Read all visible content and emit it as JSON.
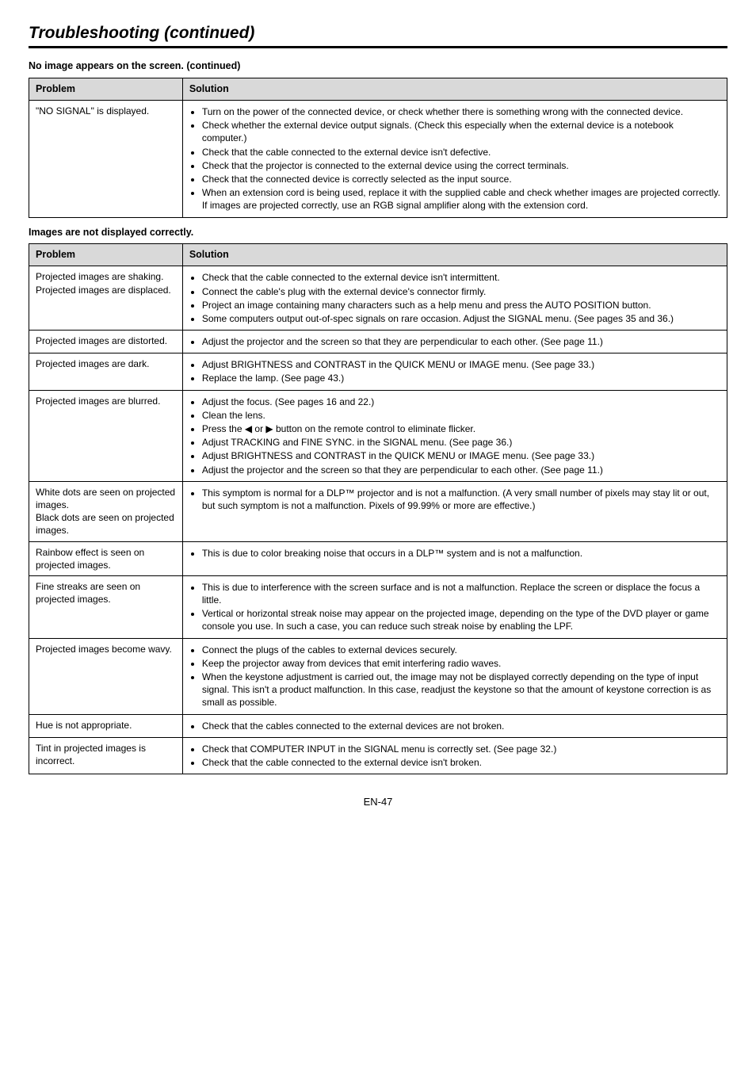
{
  "page": {
    "title": "Troubleshooting (continued)",
    "footer": "EN-47"
  },
  "section1": {
    "heading": "No image appears on the screen. (continued)",
    "headers": {
      "col1": "Problem",
      "col2": "Solution"
    },
    "rows": [
      {
        "problem": "\"NO SIGNAL\" is displayed.",
        "bullets": [
          "Turn on the power of the connected device, or check whether there is something wrong with the connected device.",
          "Check whether the external device output signals. (Check this especially when the external device is a notebook computer.)",
          "Check that the cable connected to the external device isn't defective.",
          "Check that the projector is connected to the external device using the correct terminals.",
          "Check that the connected device is correctly selected as the input source.",
          "When an extension cord is being used, replace it with the supplied cable and check whether images are projected correctly. If images are projected correctly, use an RGB signal amplifier along with the extension cord."
        ]
      }
    ]
  },
  "section2": {
    "heading": "Images are not displayed correctly.",
    "headers": {
      "col1": "Problem",
      "col2": "Solution"
    },
    "rows": [
      {
        "problem": "Projected images are shaking.\nProjected images are displaced.",
        "bullets": [
          "Check that the cable connected to the external device isn't intermittent.",
          "Connect the cable's plug with the external device's connector firmly.",
          "Project an image containing many characters such as a help menu and press the AUTO POSITION button.",
          "Some computers output out-of-spec signals on rare occasion. Adjust the SIGNAL menu. (See pages 35 and 36.)"
        ]
      },
      {
        "problem": "Projected images are distorted.",
        "bullets": [
          "Adjust the projector and the screen so that they are perpendicular to each other. (See page 11.)"
        ]
      },
      {
        "problem": "Projected images are dark.",
        "bullets": [
          "Adjust BRIGHTNESS and CONTRAST in the QUICK MENU or IMAGE menu. (See page 33.)",
          "Replace the lamp. (See page 43.)"
        ]
      },
      {
        "problem": "Projected images are blurred.",
        "bullets": [
          "Adjust the focus. (See pages 16 and 22.)",
          "Clean the lens.",
          "Press the ◀ or ▶ button on the remote control to eliminate flicker.",
          "Adjust TRACKING and FINE SYNC. in the SIGNAL menu. (See page 36.)",
          "Adjust BRIGHTNESS and CONTRAST in the QUICK MENU or IMAGE menu. (See page 33.)",
          "Adjust the projector and the screen so that they are perpendicular to each other. (See page 11.)"
        ]
      },
      {
        "problem": "White dots are seen on projected images.\nBlack dots are seen on projected images.",
        "bullets": [
          "This symptom is normal for a DLP™ projector and is not a malfunction. (A very small number of pixels may stay lit or out, but such symptom is not a malfunction. Pixels of 99.99% or more are effective.)"
        ]
      },
      {
        "problem": "Rainbow effect is seen on projected images.",
        "bullets": [
          "This is due to color breaking noise that occurs in a DLP™ system and is not a malfunction."
        ]
      },
      {
        "problem": "Fine streaks are seen on projected images.",
        "bullets": [
          "This is due to interference with the screen surface and is not a malfunction. Replace the screen or displace the focus a little.",
          "Vertical or horizontal streak noise may appear on the projected image, depending on the type of the DVD player or game console you use. In such a case, you can reduce such streak noise by enabling the LPF."
        ]
      },
      {
        "problem": "Projected images become wavy.",
        "bullets": [
          "Connect the plugs of the cables to external devices securely.",
          "Keep the projector away from devices that emit interfering radio waves.",
          "When the keystone adjustment is carried out, the image may not be displayed correctly depending on the type of input signal. This isn't a product malfunction. In this case, readjust the keystone so that the amount of keystone correction is as small as possible."
        ]
      },
      {
        "problem": "Hue is not appropriate.",
        "bullets": [
          "Check that the cables connected to the external devices are not broken."
        ]
      },
      {
        "problem": "Tint in projected images is incorrect.",
        "bullets": [
          "Check that COMPUTER INPUT in the SIGNAL menu is correctly set. (See page 32.)",
          "Check that the cable connected to the external device isn't broken."
        ]
      }
    ]
  }
}
